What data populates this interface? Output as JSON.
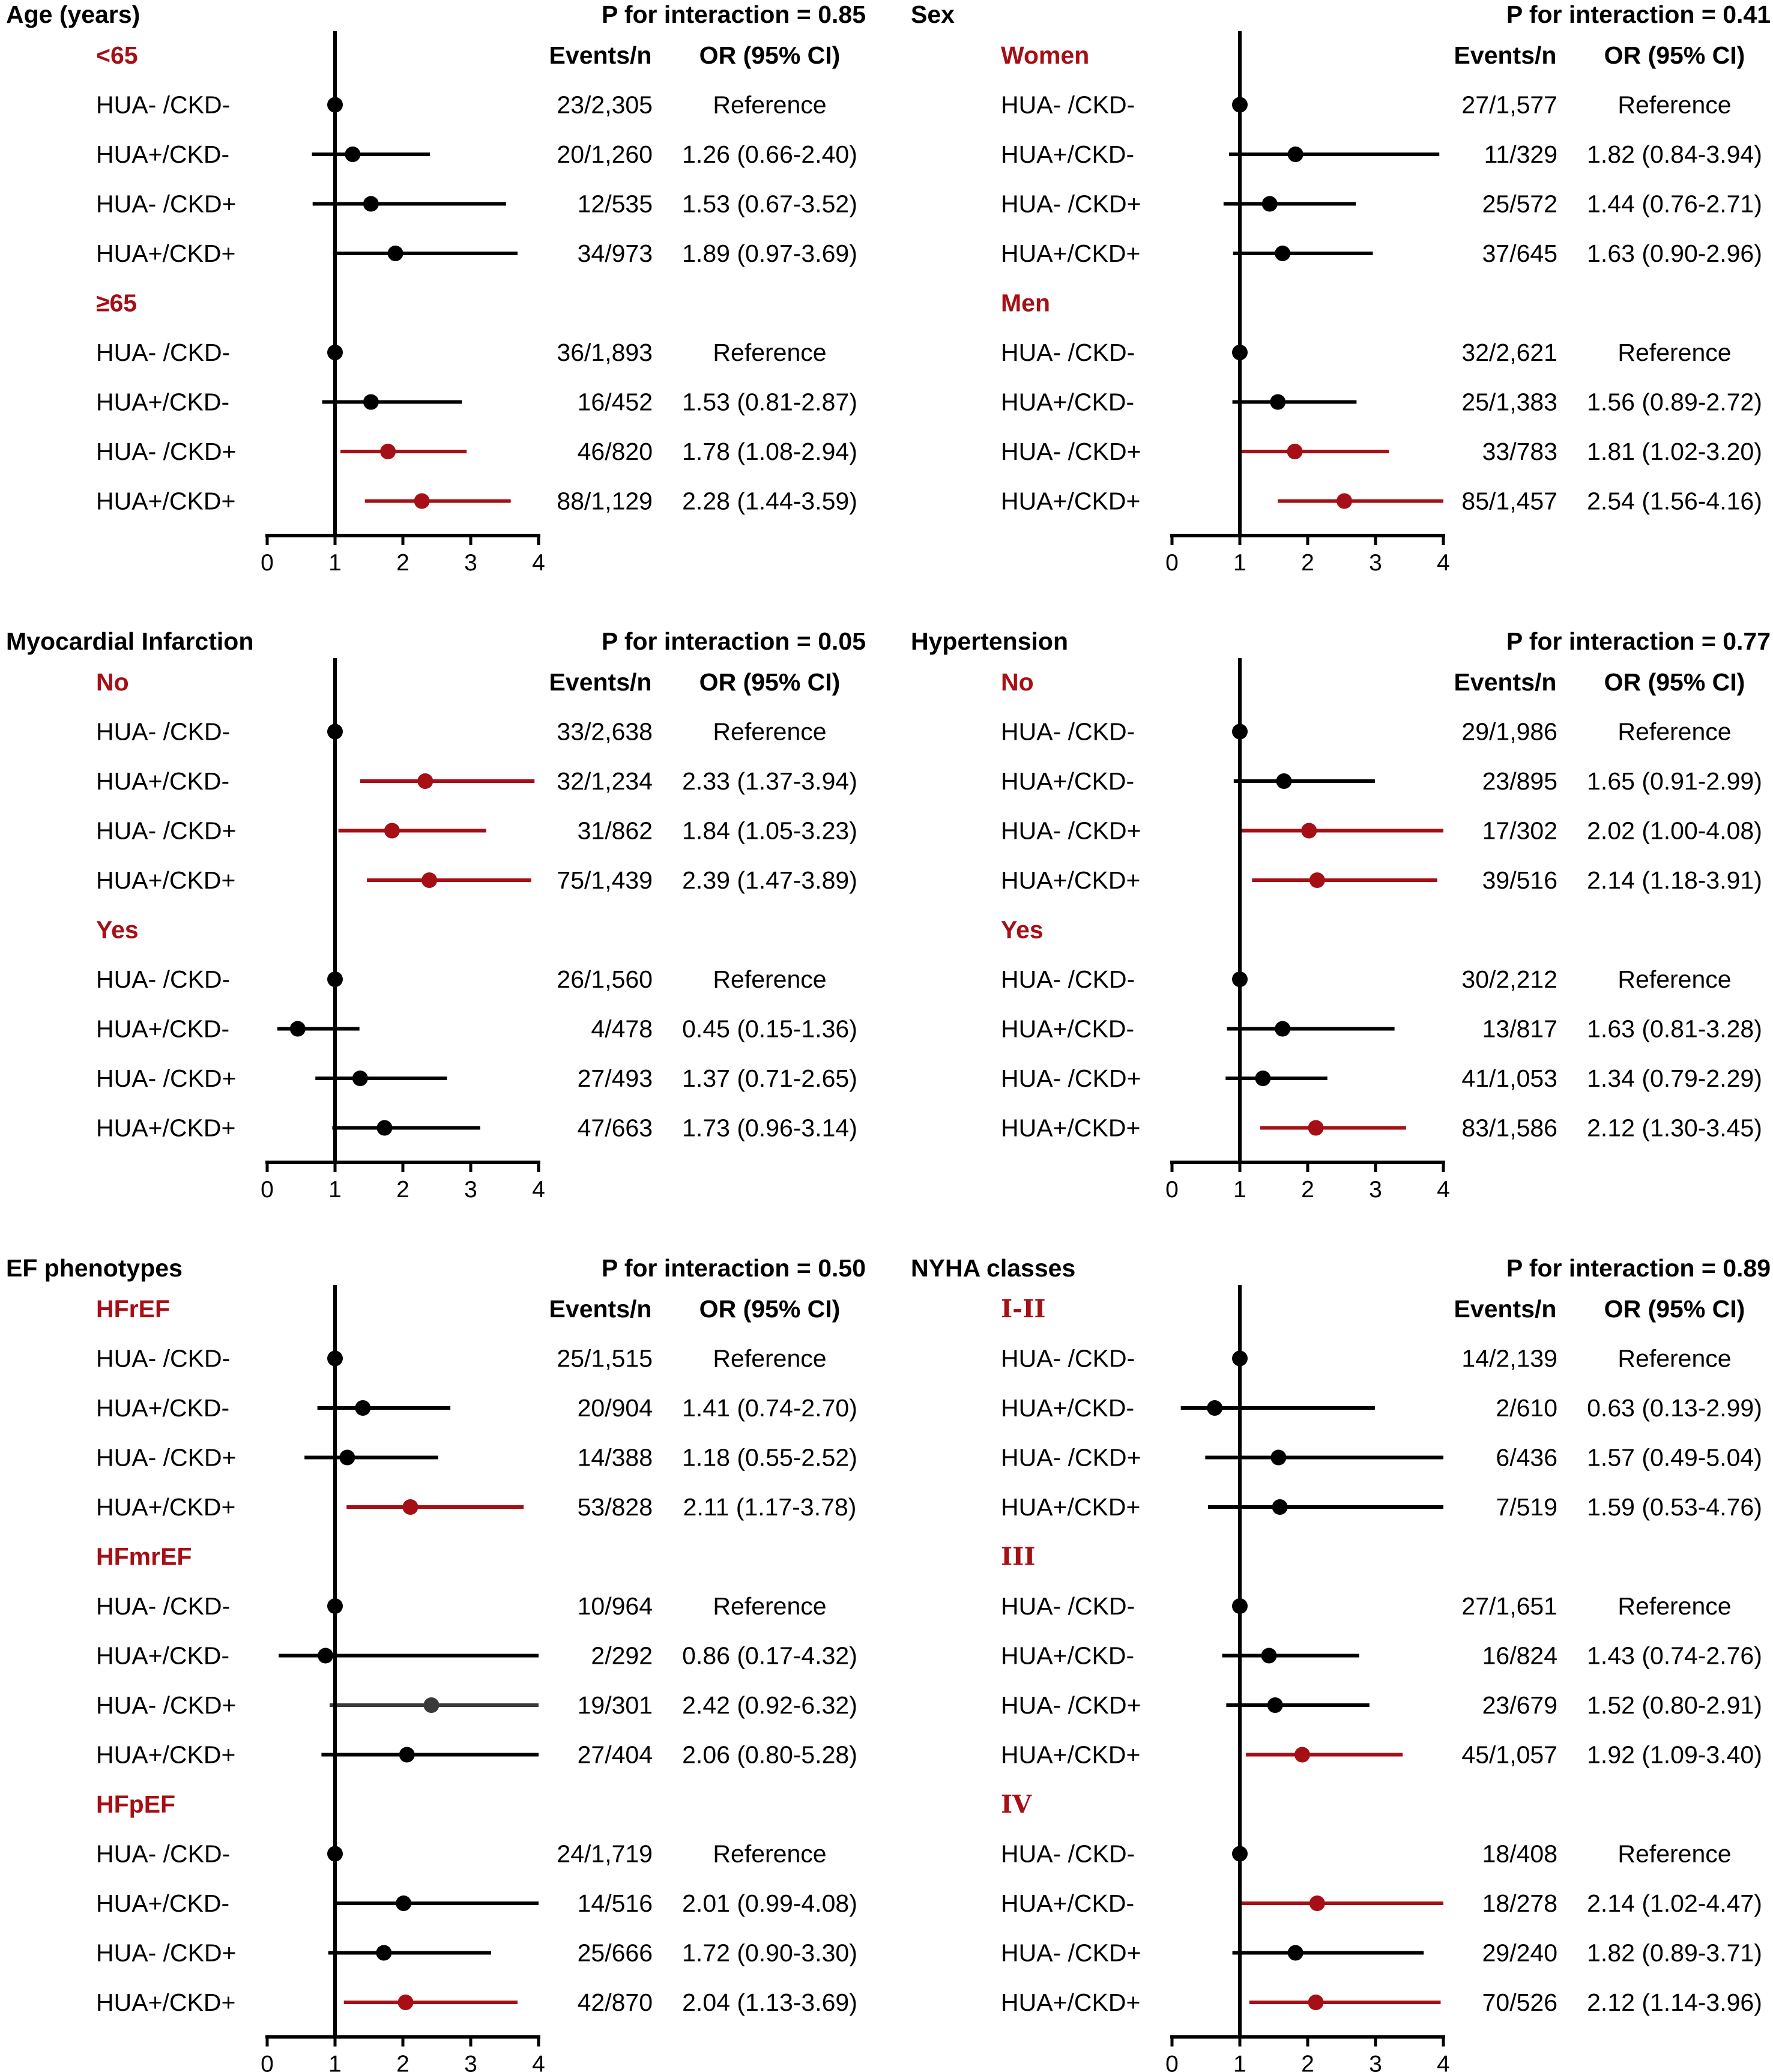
{
  "chart_data": [
    {
      "type": "forest",
      "title": "Age (years)",
      "interaction_label": "P for interaction = 0.85",
      "events_header": "Events/n",
      "or_header": "OR (95% CI)",
      "xlim": [
        0,
        4
      ],
      "xticks": [
        "0",
        "1",
        "2",
        "3",
        "4"
      ],
      "reference_line": 1,
      "groups": [
        {
          "label": "<65",
          "rows": [
            {
              "label": "HUA- /CKD-",
              "events": "23/2,305",
              "or_text": "Reference",
              "or": 1,
              "lo": 1,
              "hi": 1,
              "color": "#000000"
            },
            {
              "label": "HUA+/CKD-",
              "events": "20/1,260",
              "or_text": "1.26 (0.66-2.40)",
              "or": 1.26,
              "lo": 0.66,
              "hi": 2.4,
              "color": "#000000"
            },
            {
              "label": "HUA- /CKD+",
              "events": "12/535",
              "or_text": "1.53 (0.67-3.52)",
              "or": 1.53,
              "lo": 0.67,
              "hi": 3.52,
              "color": "#000000"
            },
            {
              "label": "HUA+/CKD+",
              "events": "34/973",
              "or_text": "1.89 (0.97-3.69)",
              "or": 1.89,
              "lo": 0.97,
              "hi": 3.69,
              "color": "#000000"
            }
          ]
        },
        {
          "label": "≥65",
          "rows": [
            {
              "label": "HUA- /CKD-",
              "events": "36/1,893",
              "or_text": "Reference",
              "or": 1,
              "lo": 1,
              "hi": 1,
              "color": "#000000"
            },
            {
              "label": "HUA+/CKD-",
              "events": "16/452",
              "or_text": "1.53 (0.81-2.87)",
              "or": 1.53,
              "lo": 0.81,
              "hi": 2.87,
              "color": "#000000"
            },
            {
              "label": "HUA- /CKD+",
              "events": "46/820",
              "or_text": "1.78 (1.08-2.94)",
              "or": 1.78,
              "lo": 1.08,
              "hi": 2.94,
              "color": "#a50f15"
            },
            {
              "label": "HUA+/CKD+",
              "events": "88/1,129",
              "or_text": "2.28 (1.44-3.59)",
              "or": 2.28,
              "lo": 1.44,
              "hi": 3.59,
              "color": "#a50f15"
            }
          ]
        }
      ]
    },
    {
      "type": "forest",
      "title": "Sex",
      "interaction_label": "P for interaction = 0.41",
      "events_header": "Events/n",
      "or_header": "OR (95% CI)",
      "xlim": [
        0,
        4
      ],
      "xticks": [
        "0",
        "1",
        "2",
        "3",
        "4"
      ],
      "reference_line": 1,
      "groups": [
        {
          "label": "Women",
          "rows": [
            {
              "label": "HUA- /CKD-",
              "events": "27/1,577",
              "or_text": "Reference",
              "or": 1,
              "lo": 1,
              "hi": 1,
              "color": "#000000"
            },
            {
              "label": "HUA+/CKD-",
              "events": "11/329",
              "or_text": "1.82 (0.84-3.94)",
              "or": 1.82,
              "lo": 0.84,
              "hi": 3.94,
              "color": "#000000"
            },
            {
              "label": "HUA- /CKD+",
              "events": "25/572",
              "or_text": "1.44 (0.76-2.71)",
              "or": 1.44,
              "lo": 0.76,
              "hi": 2.71,
              "color": "#000000"
            },
            {
              "label": "HUA+/CKD+",
              "events": "37/645",
              "or_text": "1.63 (0.90-2.96)",
              "or": 1.63,
              "lo": 0.9,
              "hi": 2.96,
              "color": "#000000"
            }
          ]
        },
        {
          "label": "Men",
          "rows": [
            {
              "label": "HUA- /CKD-",
              "events": "32/2,621",
              "or_text": "Reference",
              "or": 1,
              "lo": 1,
              "hi": 1,
              "color": "#000000"
            },
            {
              "label": "HUA+/CKD-",
              "events": "25/1,383",
              "or_text": "1.56 (0.89-2.72)",
              "or": 1.56,
              "lo": 0.89,
              "hi": 2.72,
              "color": "#000000"
            },
            {
              "label": "HUA- /CKD+",
              "events": "33/783",
              "or_text": "1.81 (1.02-3.20)",
              "or": 1.81,
              "lo": 1.02,
              "hi": 3.2,
              "color": "#a50f15"
            },
            {
              "label": "HUA+/CKD+",
              "events": "85/1,457",
              "or_text": "2.54 (1.56-4.16)",
              "or": 2.54,
              "lo": 1.56,
              "hi": 4.16,
              "color": "#a50f15"
            }
          ]
        }
      ]
    },
    {
      "type": "forest",
      "title": "Myocardial Infarction",
      "interaction_label": "P for interaction = 0.05",
      "events_header": "Events/n",
      "or_header": "OR (95% CI)",
      "xlim": [
        0,
        4
      ],
      "xticks": [
        "0",
        "1",
        "2",
        "3",
        "4"
      ],
      "reference_line": 1,
      "groups": [
        {
          "label": "No",
          "rows": [
            {
              "label": "HUA- /CKD-",
              "events": "33/2,638",
              "or_text": "Reference",
              "or": 1,
              "lo": 1,
              "hi": 1,
              "color": "#000000"
            },
            {
              "label": "HUA+/CKD-",
              "events": "32/1,234",
              "or_text": "2.33 (1.37-3.94)",
              "or": 2.33,
              "lo": 1.37,
              "hi": 3.94,
              "color": "#a50f15"
            },
            {
              "label": "HUA- /CKD+",
              "events": "31/862",
              "or_text": "1.84 (1.05-3.23)",
              "or": 1.84,
              "lo": 1.05,
              "hi": 3.23,
              "color": "#a50f15"
            },
            {
              "label": "HUA+/CKD+",
              "events": "75/1,439",
              "or_text": "2.39 (1.47-3.89)",
              "or": 2.39,
              "lo": 1.47,
              "hi": 3.89,
              "color": "#a50f15"
            }
          ]
        },
        {
          "label": "Yes",
          "rows": [
            {
              "label": "HUA- /CKD-",
              "events": "26/1,560",
              "or_text": "Reference",
              "or": 1,
              "lo": 1,
              "hi": 1,
              "color": "#000000"
            },
            {
              "label": "HUA+/CKD-",
              "events": "4/478",
              "or_text": "0.45 (0.15-1.36)",
              "or": 0.45,
              "lo": 0.15,
              "hi": 1.36,
              "color": "#000000"
            },
            {
              "label": "HUA- /CKD+",
              "events": "27/493",
              "or_text": "1.37 (0.71-2.65)",
              "or": 1.37,
              "lo": 0.71,
              "hi": 2.65,
              "color": "#000000"
            },
            {
              "label": "HUA+/CKD+",
              "events": "47/663",
              "or_text": "1.73 (0.96-3.14)",
              "or": 1.73,
              "lo": 0.96,
              "hi": 3.14,
              "color": "#000000"
            }
          ]
        }
      ]
    },
    {
      "type": "forest",
      "title": "Hypertension",
      "interaction_label": "P for interaction = 0.77",
      "events_header": "Events/n",
      "or_header": "OR (95% CI)",
      "xlim": [
        0,
        4
      ],
      "xticks": [
        "0",
        "1",
        "2",
        "3",
        "4"
      ],
      "reference_line": 1,
      "groups": [
        {
          "label": "No",
          "rows": [
            {
              "label": "HUA- /CKD-",
              "events": "29/1,986",
              "or_text": "Reference",
              "or": 1,
              "lo": 1,
              "hi": 1,
              "color": "#000000"
            },
            {
              "label": "HUA+/CKD-",
              "events": "23/895",
              "or_text": "1.65 (0.91-2.99)",
              "or": 1.65,
              "lo": 0.91,
              "hi": 2.99,
              "color": "#000000"
            },
            {
              "label": "HUA- /CKD+",
              "events": "17/302",
              "or_text": "2.02 (1.00-4.08)",
              "or": 2.02,
              "lo": 1.0,
              "hi": 4.08,
              "color": "#a50f15"
            },
            {
              "label": "HUA+/CKD+",
              "events": "39/516",
              "or_text": "2.14 (1.18-3.91)",
              "or": 2.14,
              "lo": 1.18,
              "hi": 3.91,
              "color": "#a50f15"
            }
          ]
        },
        {
          "label": "Yes",
          "rows": [
            {
              "label": "HUA- /CKD-",
              "events": "30/2,212",
              "or_text": "Reference",
              "or": 1,
              "lo": 1,
              "hi": 1,
              "color": "#000000"
            },
            {
              "label": "HUA+/CKD-",
              "events": "13/817",
              "or_text": "1.63 (0.81-3.28)",
              "or": 1.63,
              "lo": 0.81,
              "hi": 3.28,
              "color": "#000000"
            },
            {
              "label": "HUA- /CKD+",
              "events": "41/1,053",
              "or_text": "1.34 (0.79-2.29)",
              "or": 1.34,
              "lo": 0.79,
              "hi": 2.29,
              "color": "#000000"
            },
            {
              "label": "HUA+/CKD+",
              "events": "83/1,586",
              "or_text": "2.12 (1.30-3.45)",
              "or": 2.12,
              "lo": 1.3,
              "hi": 3.45,
              "color": "#a50f15"
            }
          ]
        }
      ]
    },
    {
      "type": "forest",
      "title": "EF phenotypes",
      "interaction_label": "P for interaction = 0.50",
      "events_header": "Events/n",
      "or_header": "OR (95% CI)",
      "xlim": [
        0,
        4
      ],
      "xticks": [
        "0",
        "1",
        "2",
        "3",
        "4"
      ],
      "reference_line": 1,
      "groups": [
        {
          "label": "HFrEF",
          "rows": [
            {
              "label": "HUA- /CKD-",
              "events": "25/1,515",
              "or_text": "Reference",
              "or": 1,
              "lo": 1,
              "hi": 1,
              "color": "#000000"
            },
            {
              "label": "HUA+/CKD-",
              "events": "20/904",
              "or_text": "1.41 (0.74-2.70)",
              "or": 1.41,
              "lo": 0.74,
              "hi": 2.7,
              "color": "#000000"
            },
            {
              "label": "HUA- /CKD+",
              "events": "14/388",
              "or_text": "1.18 (0.55-2.52)",
              "or": 1.18,
              "lo": 0.55,
              "hi": 2.52,
              "color": "#000000"
            },
            {
              "label": "HUA+/CKD+",
              "events": "53/828",
              "or_text": "2.11 (1.17-3.78)",
              "or": 2.11,
              "lo": 1.17,
              "hi": 3.78,
              "color": "#a50f15"
            }
          ]
        },
        {
          "label": "HFmrEF",
          "rows": [
            {
              "label": "HUA- /CKD-",
              "events": "10/964",
              "or_text": "Reference",
              "or": 1,
              "lo": 1,
              "hi": 1,
              "color": "#000000"
            },
            {
              "label": "HUA+/CKD-",
              "events": "2/292",
              "or_text": "0.86 (0.17-4.32)",
              "or": 0.86,
              "lo": 0.17,
              "hi": 4.32,
              "color": "#000000"
            },
            {
              "label": "HUA- /CKD+",
              "events": "19/301",
              "or_text": "2.42 (0.92-6.32)",
              "or": 2.42,
              "lo": 0.92,
              "hi": 6.32,
              "color": "#3a3a3a"
            },
            {
              "label": "HUA+/CKD+",
              "events": "27/404",
              "or_text": "2.06 (0.80-5.28)",
              "or": 2.06,
              "lo": 0.8,
              "hi": 5.28,
              "color": "#000000"
            }
          ]
        },
        {
          "label": "HFpEF",
          "rows": [
            {
              "label": "HUA- /CKD-",
              "events": "24/1,719",
              "or_text": "Reference",
              "or": 1,
              "lo": 1,
              "hi": 1,
              "color": "#000000"
            },
            {
              "label": "HUA+/CKD-",
              "events": "14/516",
              "or_text": "2.01 (0.99-4.08)",
              "or": 2.01,
              "lo": 0.99,
              "hi": 4.08,
              "color": "#000000"
            },
            {
              "label": "HUA- /CKD+",
              "events": "25/666",
              "or_text": "1.72 (0.90-3.30)",
              "or": 1.72,
              "lo": 0.9,
              "hi": 3.3,
              "color": "#000000"
            },
            {
              "label": "HUA+/CKD+",
              "events": "42/870",
              "or_text": "2.04 (1.13-3.69)",
              "or": 2.04,
              "lo": 1.13,
              "hi": 3.69,
              "color": "#a50f15"
            }
          ]
        }
      ]
    },
    {
      "type": "forest",
      "title": "NYHA classes",
      "interaction_label": "P for interaction = 0.89",
      "events_header": "Events/n",
      "or_header": "OR (95% CI)",
      "xlim": [
        0,
        4
      ],
      "xticks": [
        "0",
        "1",
        "2",
        "3",
        "4"
      ],
      "reference_line": 1,
      "groups": [
        {
          "label": "I-II",
          "serif": true,
          "rows": [
            {
              "label": "HUA- /CKD-",
              "events": "14/2,139",
              "or_text": "Reference",
              "or": 1,
              "lo": 1,
              "hi": 1,
              "color": "#000000"
            },
            {
              "label": "HUA+/CKD-",
              "events": "2/610",
              "or_text": "0.63 (0.13-2.99)",
              "or": 0.63,
              "lo": 0.13,
              "hi": 2.99,
              "color": "#000000"
            },
            {
              "label": "HUA- /CKD+",
              "events": "6/436",
              "or_text": "1.57 (0.49-5.04)",
              "or": 1.57,
              "lo": 0.49,
              "hi": 5.04,
              "color": "#000000"
            },
            {
              "label": "HUA+/CKD+",
              "events": "7/519",
              "or_text": "1.59 (0.53-4.76)",
              "or": 1.59,
              "lo": 0.53,
              "hi": 4.76,
              "color": "#000000"
            }
          ]
        },
        {
          "label": "III",
          "serif": true,
          "rows": [
            {
              "label": "HUA- /CKD-",
              "events": "27/1,651",
              "or_text": "Reference",
              "or": 1,
              "lo": 1,
              "hi": 1,
              "color": "#000000"
            },
            {
              "label": "HUA+/CKD-",
              "events": "16/824",
              "or_text": "1.43 (0.74-2.76)",
              "or": 1.43,
              "lo": 0.74,
              "hi": 2.76,
              "color": "#000000"
            },
            {
              "label": "HUA- /CKD+",
              "events": "23/679",
              "or_text": "1.52 (0.80-2.91)",
              "or": 1.52,
              "lo": 0.8,
              "hi": 2.91,
              "color": "#000000"
            },
            {
              "label": "HUA+/CKD+",
              "events": "45/1,057",
              "or_text": "1.92 (1.09-3.40)",
              "or": 1.92,
              "lo": 1.09,
              "hi": 3.4,
              "color": "#a50f15"
            }
          ]
        },
        {
          "label": "IV",
          "serif": true,
          "rows": [
            {
              "label": "HUA- /CKD-",
              "events": "18/408",
              "or_text": "Reference",
              "or": 1,
              "lo": 1,
              "hi": 1,
              "color": "#000000"
            },
            {
              "label": "HUA+/CKD-",
              "events": "18/278",
              "or_text": "2.14 (1.02-4.47)",
              "or": 2.14,
              "lo": 1.02,
              "hi": 4.47,
              "color": "#a50f15"
            },
            {
              "label": "HUA- /CKD+",
              "events": "29/240",
              "or_text": "1.82 (0.89-3.71)",
              "or": 1.82,
              "lo": 0.89,
              "hi": 3.71,
              "color": "#000000"
            },
            {
              "label": "HUA+/CKD+",
              "events": "70/526",
              "or_text": "2.12 (1.14-3.96)",
              "or": 2.12,
              "lo": 1.14,
              "hi": 3.96,
              "color": "#a50f15"
            }
          ]
        }
      ]
    }
  ]
}
